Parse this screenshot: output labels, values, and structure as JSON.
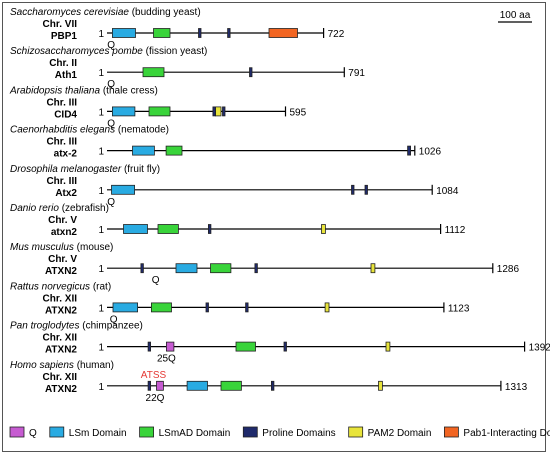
{
  "scale_bar": "100 aa",
  "colors": {
    "Q": "#c65bd1",
    "LSm": "#29abe2",
    "LSmAD": "#39d43a",
    "Proline": "#1f2a6b",
    "PAM2": "#e8e43a",
    "Pab1": "#f26522",
    "line": "#000000",
    "atss": "#e53935"
  },
  "legend": [
    {
      "key": "Q",
      "label": "Q"
    },
    {
      "key": "LSm",
      "label": "LSm Domain"
    },
    {
      "key": "LSmAD",
      "label": "LSmAD Domain"
    },
    {
      "key": "Proline",
      "label": "Proline Domains"
    },
    {
      "key": "PAM2",
      "label": "PAM2 Domain"
    },
    {
      "key": "Pab1",
      "label": "Pab1-Interacting Domain"
    }
  ],
  "proteins": [
    {
      "species": "Saccharomyces cerevisiae",
      "common": " (budding yeast)",
      "chr": "Chr. VII",
      "gene": "PBP1",
      "start": "1",
      "length": "722",
      "domains": [
        {
          "type": "LSm",
          "from": 18,
          "to": 95
        },
        {
          "type": "LSmAD",
          "from": 155,
          "to": 210
        },
        {
          "type": "Proline",
          "from": 305,
          "to": 313
        },
        {
          "type": "Proline",
          "from": 402,
          "to": 410
        },
        {
          "type": "Pab1",
          "from": 540,
          "to": 635
        }
      ],
      "qlabel": "Q",
      "qlabel_at": 14
    },
    {
      "species": "Schizosaccharomyces pombe",
      "common": " (fission yeast)",
      "chr": "Chr. II",
      "gene": "Ath1",
      "start": "1",
      "length": "791",
      "domains": [
        {
          "type": "LSmAD",
          "from": 120,
          "to": 190
        },
        {
          "type": "Proline",
          "from": 475,
          "to": 483
        }
      ],
      "qlabel": "Q",
      "qlabel_at": 14
    },
    {
      "species": "Arabidopsis thaliana",
      "common": " (thale cress)",
      "chr": "Chr. III",
      "gene": "CID4",
      "start": "1",
      "length": "595",
      "domains": [
        {
          "type": "LSm",
          "from": 18,
          "to": 93
        },
        {
          "type": "LSmAD",
          "from": 140,
          "to": 210
        },
        {
          "type": "Proline",
          "from": 353,
          "to": 362
        },
        {
          "type": "PAM2",
          "from": 362,
          "to": 380
        },
        {
          "type": "Proline",
          "from": 385,
          "to": 393
        }
      ],
      "qlabel": "Q",
      "qlabel_at": 14
    },
    {
      "species": "Caenorhabditis elegans",
      "common": " (nematode)",
      "chr": "Chr. III",
      "gene": "atx-2",
      "start": "1",
      "length": "1026",
      "domains": [
        {
          "type": "LSm",
          "from": 85,
          "to": 158
        },
        {
          "type": "LSmAD",
          "from": 197,
          "to": 250
        },
        {
          "type": "Proline",
          "from": 1002,
          "to": 1012
        }
      ],
      "qlabel": "",
      "qlabel_at": 14
    },
    {
      "species": "Drosophila melanogaster",
      "common": " (fruit fly)",
      "chr": "Chr. III",
      "gene": "Atx2",
      "start": "1",
      "length": "1084",
      "domains": [
        {
          "type": "LSm",
          "from": 15,
          "to": 92
        },
        {
          "type": "Proline",
          "from": 815,
          "to": 823
        },
        {
          "type": "Proline",
          "from": 860,
          "to": 868
        }
      ],
      "qlabel": "Q",
      "qlabel_at": 14
    },
    {
      "species": "Danio rerio",
      "common": " (zebrafish)",
      "chr": "Chr. V",
      "gene": "atxn2",
      "start": "1",
      "length": "1112",
      "domains": [
        {
          "type": "LSm",
          "from": 55,
          "to": 135
        },
        {
          "type": "LSmAD",
          "from": 170,
          "to": 238
        },
        {
          "type": "Proline",
          "from": 338,
          "to": 346
        },
        {
          "type": "PAM2",
          "from": 715,
          "to": 728
        }
      ],
      "qlabel": "",
      "qlabel_at": 14
    },
    {
      "species": "Mus musculus",
      "common": " (mouse)",
      "chr": "Chr. V",
      "gene": "ATXN2",
      "start": "1",
      "length": "1286",
      "domains": [
        {
          "type": "Proline",
          "from": 113,
          "to": 121
        },
        {
          "type": "LSm",
          "from": 230,
          "to": 300
        },
        {
          "type": "LSmAD",
          "from": 345,
          "to": 413
        },
        {
          "type": "Proline",
          "from": 493,
          "to": 501
        },
        {
          "type": "PAM2",
          "from": 880,
          "to": 893
        }
      ],
      "qlabel": "Q",
      "qlabel_at": 162
    },
    {
      "species": "Rattus norvegicus",
      "common": " (rat)",
      "chr": "Chr. XII",
      "gene": "ATXN2",
      "start": "1",
      "length": "1123",
      "domains": [
        {
          "type": "LSm",
          "from": 20,
          "to": 102
        },
        {
          "type": "LSmAD",
          "from": 148,
          "to": 215
        },
        {
          "type": "Proline",
          "from": 330,
          "to": 338
        },
        {
          "type": "Proline",
          "from": 462,
          "to": 470
        },
        {
          "type": "PAM2",
          "from": 727,
          "to": 740
        }
      ],
      "qlabel": "Q",
      "qlabel_at": 22
    },
    {
      "species": "Pan troglodytes",
      "common": " (chimpanzee)",
      "chr": "Chr. XII",
      "gene": "ATXN2",
      "start": "1",
      "length": "1392",
      "domains": [
        {
          "type": "Proline",
          "from": 137,
          "to": 145
        },
        {
          "type": "Q",
          "from": 198,
          "to": 223
        },
        {
          "type": "LSmAD",
          "from": 430,
          "to": 495
        },
        {
          "type": "Proline",
          "from": 590,
          "to": 598
        },
        {
          "type": "PAM2",
          "from": 930,
          "to": 943
        }
      ],
      "qlabel": "25Q",
      "qlabel_at": 198
    },
    {
      "species": "Homo sapiens",
      "common": " (human)",
      "chr": "Chr. XII",
      "gene": "ATXN2",
      "start": "1",
      "length": "1313",
      "domains": [
        {
          "type": "Proline",
          "from": 137,
          "to": 145
        },
        {
          "type": "Q",
          "from": 165,
          "to": 188
        },
        {
          "type": "LSm",
          "from": 267,
          "to": 335
        },
        {
          "type": "LSmAD",
          "from": 380,
          "to": 448
        },
        {
          "type": "Proline",
          "from": 548,
          "to": 556
        },
        {
          "type": "PAM2",
          "from": 905,
          "to": 918
        }
      ],
      "qlabel": "22Q",
      "qlabel_at": 160,
      "atss_label": "ATSS",
      "atss_at": 155
    }
  ]
}
